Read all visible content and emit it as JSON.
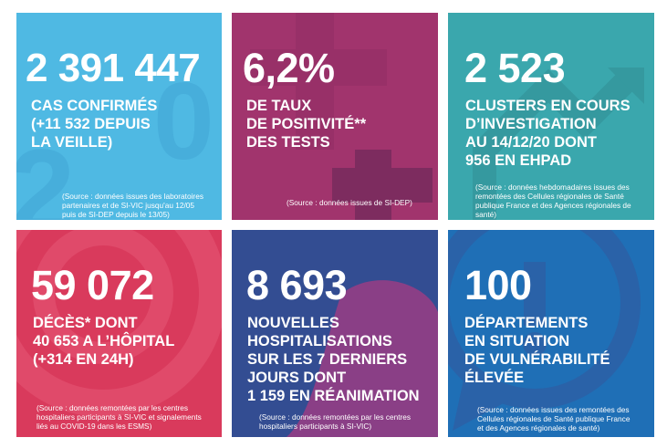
{
  "colors": {
    "tile_confirmed": "#4fb9e3",
    "tile_positivity": "#a1346d",
    "tile_clusters": "#3aa7ad",
    "tile_deaths": "#d93a5c",
    "tile_hospitalisations": "#334d92",
    "tile_departments": "#1f6fb6",
    "text": "#ffffff"
  },
  "tiles": [
    {
      "number": "2 391 447",
      "label_lines": [
        "CAS CONFIRMÉS",
        "(+11 532 DEPUIS",
        "LA VEILLE)"
      ],
      "source_lines": [
        "(Source : données issues des laboratoires",
        "partenaires et de SI-VIC jusqu'au 12/05",
        "puis de SI-DEP depuis le 13/05)"
      ]
    },
    {
      "number": "6,2%",
      "label_lines": [
        "DE TAUX",
        "DE POSITIVITÉ**",
        "DES TESTS"
      ],
      "source_lines": [
        "(Source : données issues de SI-DEP)"
      ]
    },
    {
      "number": "2 523",
      "label_lines": [
        "CLUSTERS EN COURS",
        "D’INVESTIGATION",
        "AU 14/12/20 DONT",
        "956 EN EHPAD"
      ],
      "source_lines": [
        "(Source : données hebdomadaires issues des",
        "remontées des Cellules régionales de Santé",
        "publique France et des Agences régionales de",
        "santé)"
      ]
    },
    {
      "number": "59 072",
      "label_lines": [
        "DÉCÈS* DONT",
        "40 653 A L’HÔPITAL",
        "(+314 EN 24H)"
      ],
      "source_lines": [
        "(Source : données remontées par les centres",
        "hospitaliers participants à SI-VIC et signalements",
        "liés au COVID-19 dans les ESMS)"
      ]
    },
    {
      "number": "8 693",
      "label_lines": [
        "NOUVELLES",
        "HOSPITALISATIONS",
        "SUR LES 7 DERNIERS",
        "JOURS DONT",
        "1 159 EN RÉANIMATION"
      ],
      "source_lines": [
        "(Source : données remontées par les centres",
        "hospitaliers participants à SI-VIC)"
      ]
    },
    {
      "number": "100",
      "label_lines": [
        "DÉPARTEMENTS",
        "EN SITUATION",
        "DE VULNÉRABILITÉ",
        "ÉLEVÉE"
      ],
      "source_lines": [
        "(Source : données issues des remontées des",
        "Cellules régionales de Santé publique France",
        "et des Agences régionales de santé)"
      ]
    }
  ]
}
